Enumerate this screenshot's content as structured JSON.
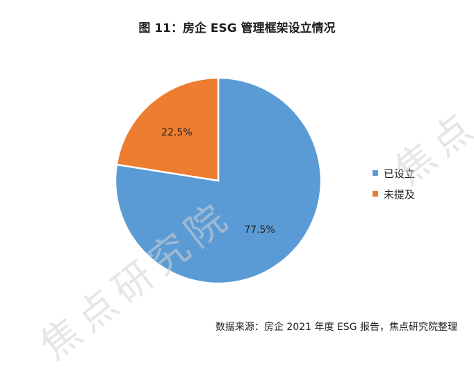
{
  "title": "图 11：房企 ESG 管理框架设立情况",
  "source": "数据来源：房企 2021 年度 ESG 报告，焦点研究院整理",
  "watermark": "焦点研究院",
  "watermark_fragment": "焦点",
  "chart_data": {
    "type": "pie",
    "slices": [
      {
        "label": "已设立",
        "value": 77.5,
        "display": "77.5%",
        "color": "#5B9BD5"
      },
      {
        "label": "未提及",
        "value": 22.5,
        "display": "22.5%",
        "color": "#ED7D31"
      }
    ],
    "legend_position": "right"
  }
}
